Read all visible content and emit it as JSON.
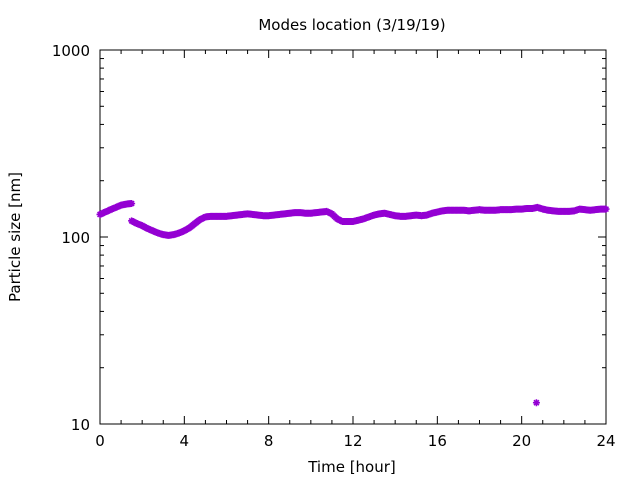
{
  "chart_data": {
    "type": "scatter",
    "title": "Modes location (3/19/19)",
    "xlabel": "Time [hour]",
    "ylabel": "Particle size [nm]",
    "xlim": [
      0,
      24
    ],
    "ylim": [
      10,
      1000
    ],
    "yscale": "log",
    "grid": false,
    "legend": "none",
    "x_ticks": [
      0,
      4,
      8,
      12,
      16,
      20,
      24
    ],
    "x_tick_labels": [
      "0",
      "4",
      "8",
      "12",
      "16",
      "20",
      "24"
    ],
    "y_ticks": [
      10,
      100,
      1000
    ],
    "y_tick_labels": [
      "10",
      "100",
      "1000"
    ],
    "series": [
      {
        "color": "#9400d3",
        "x": [
          0.0,
          0.25,
          0.5,
          0.75,
          1.0,
          1.25,
          1.5,
          1.5,
          1.75,
          2.0,
          2.25,
          2.5,
          2.75,
          3.0,
          3.25,
          3.5,
          3.75,
          4.0,
          4.25,
          4.5,
          4.75,
          5.0,
          5.25,
          5.5,
          5.75,
          6.0,
          6.25,
          6.5,
          6.75,
          7.0,
          7.25,
          7.5,
          7.75,
          8.0,
          8.25,
          8.5,
          8.75,
          9.0,
          9.25,
          9.5,
          9.75,
          10.0,
          10.25,
          10.5,
          10.75,
          11.0,
          11.25,
          11.5,
          11.75,
          12.0,
          12.25,
          12.5,
          12.75,
          13.0,
          13.25,
          13.5,
          13.75,
          14.0,
          14.25,
          14.5,
          14.75,
          15.0,
          15.25,
          15.5,
          15.75,
          16.0,
          16.25,
          16.5,
          16.75,
          17.0,
          17.25,
          17.5,
          17.75,
          18.0,
          18.25,
          18.5,
          18.75,
          19.0,
          19.25,
          19.5,
          19.75,
          20.0,
          20.25,
          20.5,
          20.75,
          21.0,
          21.25,
          21.5,
          21.75,
          22.0,
          22.25,
          22.5,
          22.75,
          23.0,
          23.25,
          23.5,
          23.75,
          24.0,
          20.7
        ],
        "y": [
          132,
          136,
          140,
          144,
          148,
          150,
          151,
          122,
          118,
          115,
          111,
          108,
          105,
          103,
          102,
          103,
          105,
          108,
          112,
          118,
          124,
          128,
          129,
          129,
          129,
          129,
          130,
          131,
          132,
          133,
          132,
          131,
          130,
          130,
          131,
          132,
          133,
          134,
          135,
          135,
          134,
          134,
          135,
          136,
          137,
          133,
          125,
          121,
          121,
          121,
          123,
          125,
          128,
          131,
          133,
          134,
          132,
          130,
          129,
          129,
          130,
          131,
          130,
          131,
          134,
          136,
          138,
          139,
          139,
          139,
          139,
          138,
          139,
          140,
          139,
          139,
          139,
          140,
          140,
          140,
          141,
          141,
          142,
          142,
          144,
          141,
          139,
          138,
          137,
          137,
          137,
          138,
          141,
          140,
          139,
          140,
          141,
          141,
          13
        ]
      }
    ]
  }
}
